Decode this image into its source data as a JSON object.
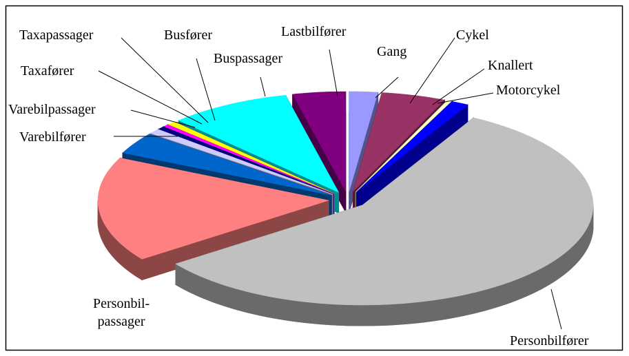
{
  "chart_data": {
    "type": "pie",
    "categories": [
      "Gang",
      "Cykel",
      "Knallert",
      "Motorcykel",
      "Personbilfører",
      "Personbil-\npassager",
      "Varebilfører",
      "Varebilpassager",
      "Taxafører",
      "Taxapassager",
      "Busfører",
      "Buspassager",
      "Lastbilfører"
    ],
    "values": [
      2,
      4.5,
      0.3,
      1.2,
      57,
      17,
      3.5,
      0.8,
      0.5,
      0.4,
      0.6,
      8.5,
      3.7
    ],
    "colors": [
      "#9999ff",
      "#993366",
      "#ffffcc",
      "#0000ff",
      "#c0c0c0",
      "#ff8080",
      "#0066cc",
      "#ccccff",
      "#000080",
      "#ff00ff",
      "#ffff00",
      "#00ffff",
      "#800080"
    ]
  }
}
